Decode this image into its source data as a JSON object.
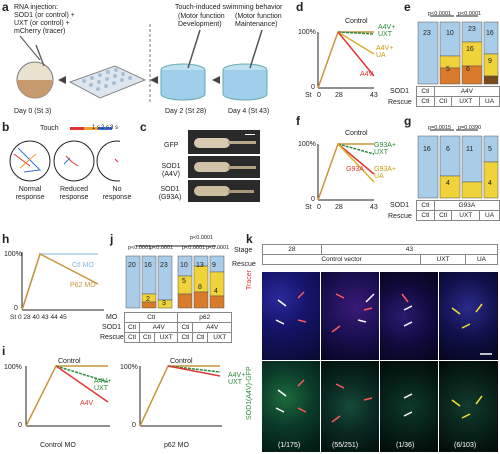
{
  "panel_letters": {
    "a": "a",
    "b": "b",
    "c": "c",
    "d": "d",
    "e": "e",
    "f": "f",
    "g": "g",
    "h": "h",
    "i": "i",
    "j": "j",
    "k": "k"
  },
  "panel_a": {
    "injection_line1": "RNA injection:",
    "injection_line2": "SOD1 (or control) +",
    "injection_line3": "UXT (or control) +",
    "injection_line4": "mCherry (tracer)",
    "touch_title": "Touch-induced swimming behavior",
    "motor_dev_1": "(Motor function",
    "motor_dev_2": "Development)",
    "motor_maint_1": "(Motor function",
    "motor_maint_2": "Maintenance)",
    "day0": "Day 0 (St 3)",
    "day2": "Day 2 (St 28)",
    "day4": "Day 4 (St 43)"
  },
  "panel_b": {
    "touch_label": "Touch",
    "t1": "1 s",
    "t2": "2 s",
    "t3": "3 s",
    "normal_1": "Normal",
    "normal_2": "response",
    "reduced_1": "Reduced",
    "reduced_2": "response",
    "no_1": "No",
    "no_2": "response"
  },
  "panel_c": {
    "gfp": "GFP",
    "sod1_a4v_1": "SOD1",
    "sod1_a4v_2": "(A4V)",
    "sod1_g93a_1": "SOD1",
    "sod1_g93a_2": "(G93A)"
  },
  "panel_d": {
    "y100": "100%",
    "y0": "0",
    "xst": "St",
    "x0": "0",
    "x28": "28",
    "x43": "43",
    "control": "Control",
    "s1": "A4V+",
    "s1b": "UXT",
    "s2": "A4V+",
    "s2b": "UA",
    "s3": "A4V"
  },
  "panel_e": {
    "p1": "p<0.0001",
    "p2": "p<0.0001",
    "sod1": "SOD1",
    "rescue": "Rescue",
    "sod1_ctl": "Ctl",
    "sod1_a4v": "A4V",
    "resc": [
      "Ctl",
      "Ctl",
      "UXT",
      "UA"
    ],
    "n": [
      "23",
      "10",
      "23",
      "16"
    ],
    "seg": [
      "5",
      "16",
      "6",
      "9"
    ]
  },
  "panel_f": {
    "y100": "100%",
    "y0": "0",
    "xst": "St",
    "x0": "0",
    "x28": "28",
    "x43": "43",
    "control": "Control",
    "s1": "G93A+",
    "s1b": "UXT",
    "s2": "G93A",
    "s3": "G93A+",
    "s3b": "UA"
  },
  "panel_g": {
    "p1": "p=0.0015",
    "p2": "p=0.0390",
    "sod1": "SOD1",
    "rescue": "Rescue",
    "sod1_ctl": "Ctl",
    "sod1_g93a": "G93A",
    "resc": [
      "Ctl",
      "Ctl",
      "UXT",
      "UA"
    ],
    "n": [
      "16",
      "6",
      "11",
      "5"
    ],
    "seg": [
      "4",
      "4"
    ]
  },
  "panel_h": {
    "y100": "100%",
    "y0": "0",
    "x": "St 0 28 40 43  44 45",
    "ctl_mo": "Ctl MO",
    "p62_mo": "P62 MO"
  },
  "panel_j": {
    "p_top": "p<0.0001",
    "p1": "p<0.0001",
    "p2": "p<0.0001",
    "p3": "p<0.0001",
    "p4": "p<0.0001",
    "mo": "MO",
    "sod1": "SOD1",
    "rescue": "Rescue",
    "mo_ctl": "Ctl",
    "mo_p62": "p62",
    "sod": [
      "Ctl",
      "A4V",
      "Ctl",
      "A4V"
    ],
    "resc": [
      "Ctl",
      "Ctl",
      "UXT",
      "Ctl",
      "Ctl",
      "UXT"
    ],
    "n": [
      "20",
      "16",
      "23",
      "10",
      "13",
      "9"
    ],
    "seg": [
      "2",
      "3",
      "5",
      "8",
      "4"
    ]
  },
  "panel_i": {
    "y100": "100%",
    "y0": "0",
    "control": "Control",
    "s1": "A4V+",
    "s1b": "UXT",
    "s2": "A4V",
    "ctl_mo": "Control MO",
    "p62_mo": "p62 MO"
  },
  "panel_k": {
    "stage": "Stage",
    "rescue": "Rescue",
    "st28": "28",
    "st43": "43",
    "control_vector": "Control vector",
    "uxt": "UXT",
    "ua": "UA",
    "tracer": "Tracer",
    "sod1": "SOD1(A4V)-GFP",
    "counts": [
      "(1/175)",
      "(55/251)",
      "(1/36)",
      "(6/103)"
    ]
  },
  "colors": {
    "blue": "#a9cde8",
    "yellow": "#f0d23a",
    "orange": "#d97b2a",
    "brown": "#7a4a1c",
    "green": "#2f8a3f",
    "red": "#e23636",
    "gray": "#888888",
    "tan": "#c8963a"
  }
}
